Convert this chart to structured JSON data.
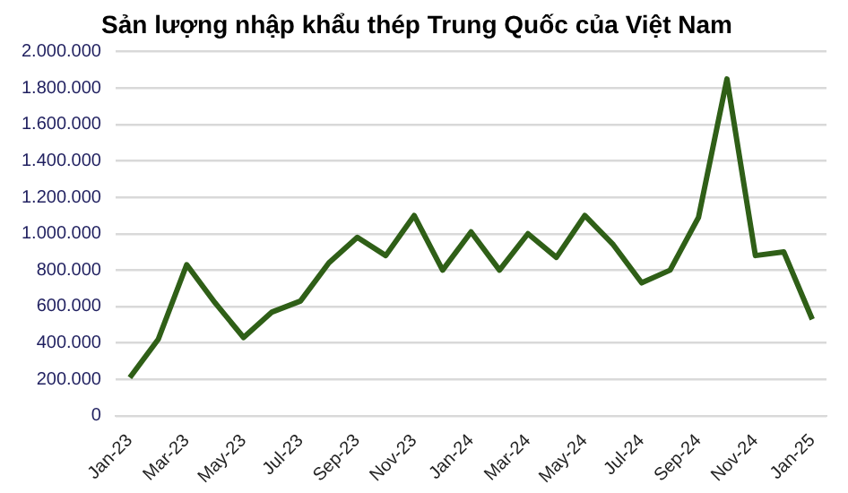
{
  "chart_data": {
    "type": "line",
    "title": "Sản lượng nhập khẩu thép Trung Quốc của Việt Nam",
    "categories": [
      "Jan-23",
      null,
      "Mar-23",
      null,
      "May-23",
      null,
      "Jul-23",
      null,
      "Sep-23",
      null,
      "Nov-23",
      null,
      "Jan-24",
      null,
      "Mar-24",
      null,
      "May-24",
      null,
      "Jul-24",
      null,
      "Sep-24",
      null,
      "Nov-24",
      null,
      "Jan-25"
    ],
    "series": [
      {
        "color": "#2f5f17",
        "values": [
          210000,
          420000,
          830000,
          620000,
          430000,
          570000,
          630000,
          840000,
          980000,
          880000,
          1100000,
          800000,
          1010000,
          800000,
          1000000,
          870000,
          1100000,
          940000,
          730000,
          800000,
          1090000,
          1850000,
          880000,
          900000,
          530000
        ]
      }
    ],
    "ylim": [
      0,
      2000000
    ],
    "yticks": [
      {
        "value": 0,
        "label": "0"
      },
      {
        "value": 200000,
        "label": "200.000"
      },
      {
        "value": 400000,
        "label": "400.000"
      },
      {
        "value": 600000,
        "label": "600.000"
      },
      {
        "value": 800000,
        "label": "800.000"
      },
      {
        "value": 1000000,
        "label": "1.000.000"
      },
      {
        "value": 1200000,
        "label": "1.200.000"
      },
      {
        "value": 1400000,
        "label": "1.400.000"
      },
      {
        "value": 1600000,
        "label": "1.600.000"
      },
      {
        "value": 1800000,
        "label": "1.800.000"
      },
      {
        "value": 2000000,
        "label": "2.000.000"
      }
    ],
    "grid": "y",
    "marker": "none",
    "legend": false
  }
}
